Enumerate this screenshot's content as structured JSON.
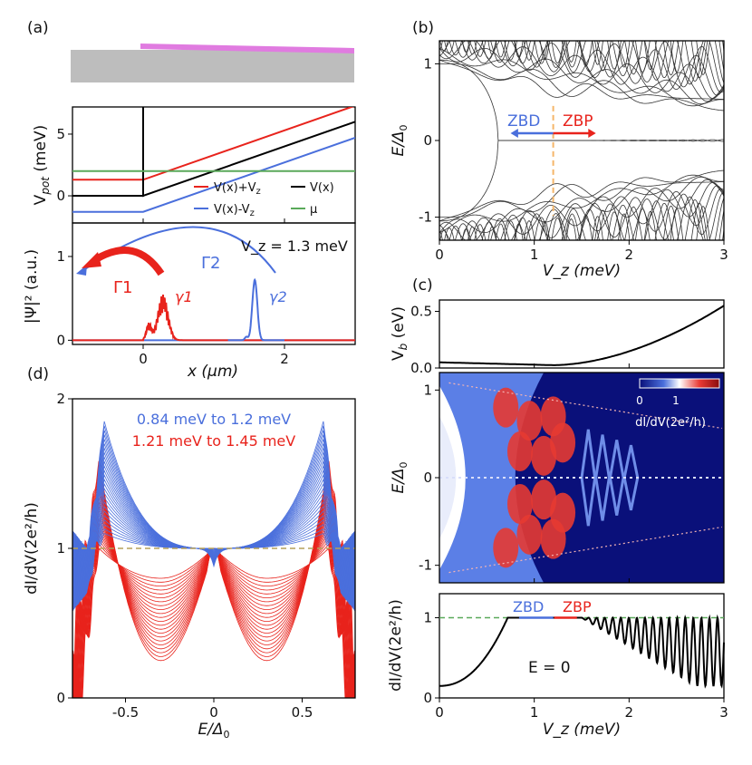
{
  "colors": {
    "red": "#e8231c",
    "blue": "#4a6fdc",
    "black": "#000000",
    "green": "#5aa95a",
    "pink": "#e07be0",
    "gray": "#bdbdbd",
    "orange": "#f5b66a",
    "darkblue": "#0a107a"
  },
  "panel_labels": {
    "a": "(a)",
    "b": "(b)",
    "c": "(c)",
    "d": "(d)"
  },
  "chart_data": [
    {
      "id": "a_device",
      "type": "diagram",
      "description_items": [
        "substrate",
        "superconductor strip"
      ]
    },
    {
      "id": "a_potential",
      "type": "line",
      "ylabel": "V_pot (meV)",
      "xlim": [
        -1,
        3
      ],
      "ylim": [
        -2.2,
        7.2
      ],
      "yticks": [
        "0",
        "5"
      ],
      "series": [
        {
          "name": "V(x)+V_z",
          "color": "#e8231c",
          "x": [
            -1,
            0,
            0,
            3
          ],
          "y": [
            1.3,
            1.3,
            1.3,
            7.3
          ]
        },
        {
          "name": "V(x)-V_z",
          "color": "#4a6fdc",
          "x": [
            -1,
            0,
            0,
            3
          ],
          "y": [
            -1.3,
            -1.3,
            -1.3,
            4.7
          ]
        },
        {
          "name": "V(x)",
          "color": "#000000",
          "x": [
            -1,
            0,
            0,
            0,
            3
          ],
          "y": [
            0,
            0,
            7.2,
            0,
            6
          ]
        },
        {
          "name": "μ",
          "color": "#5aa95a",
          "x": [
            -1,
            3
          ],
          "y": [
            2,
            2
          ]
        }
      ],
      "legend": [
        "V(x)+V_z",
        "V(x)",
        "V(x)-V_z",
        "μ"
      ]
    },
    {
      "id": "a_wavefunction",
      "type": "line",
      "xlabel": "x (μm)",
      "ylabel": "|Ψ|² (a.u.)",
      "xlim": [
        -1,
        3
      ],
      "ylim": [
        -0.05,
        1.4
      ],
      "xticks": [
        "0",
        "2"
      ],
      "yticks": [
        "0",
        "1"
      ],
      "annotation": "V_z = 1.3 meV",
      "labels": {
        "Gamma1": "Γ1",
        "Gamma2": "Γ2",
        "gamma1": "γ1",
        "gamma2": "γ2"
      },
      "series": [
        {
          "name": "γ1",
          "color": "#e8231c",
          "x": [
            0,
            0.05,
            0.1,
            0.12,
            0.15,
            0.18,
            0.2,
            0.22,
            0.25,
            0.28,
            0.3,
            0.33,
            0.36,
            0.4,
            0.45,
            0.6,
            3
          ],
          "y": [
            0,
            0.12,
            0.22,
            0.1,
            0.3,
            0.15,
            0.35,
            0.28,
            0.45,
            0.6,
            0.35,
            0.25,
            0.1,
            0.05,
            0.02,
            0,
            0
          ]
        },
        {
          "name": "γ2",
          "color": "#4a6fdc",
          "x": [
            -1,
            1.3,
            1.45,
            1.52,
            1.58,
            1.64,
            1.7,
            1.8,
            3
          ],
          "y": [
            0,
            0,
            0.02,
            0.25,
            0.72,
            0.3,
            0.03,
            0,
            0
          ]
        }
      ]
    },
    {
      "id": "b_spectrum",
      "type": "line",
      "xlabel": "V_z (meV)",
      "ylabel": "E/Δ0",
      "xlim": [
        0,
        3
      ],
      "ylim": [
        -1.3,
        1.3
      ],
      "xticks": [
        "0",
        "1",
        "2",
        "3"
      ],
      "yticks": [
        "-1",
        "0",
        "1"
      ],
      "annotations": {
        "zbd": "ZBD",
        "zbp": "ZBP"
      },
      "vline_x": 1.2
    },
    {
      "id": "c_barrier",
      "type": "line",
      "ylabel": "V_b (eV)",
      "xlim": [
        0,
        3
      ],
      "ylim": [
        0,
        0.6
      ],
      "yticks": [
        "0.0",
        "0.5"
      ],
      "x": [
        0,
        0.4,
        0.8,
        1.2,
        1.5,
        1.8,
        2.1,
        2.4,
        2.7,
        3.0
      ],
      "y": [
        0.05,
        0.035,
        0.025,
        0.025,
        0.06,
        0.13,
        0.22,
        0.31,
        0.42,
        0.55
      ]
    },
    {
      "id": "c_heatmap",
      "type": "heatmap",
      "ylabel": "E/Δ0",
      "xlim": [
        0,
        3
      ],
      "ylim": [
        -1.2,
        1.2
      ],
      "yticks": [
        "-1",
        "0",
        "1"
      ],
      "colorbar": {
        "label": "dI/dV(2e²/h)",
        "ticks": [
          "0",
          "1"
        ],
        "range": [
          0,
          1.3
        ]
      }
    },
    {
      "id": "c_zerobias",
      "type": "line",
      "xlabel": "V_z (meV)",
      "ylabel": "dI/dV(2e²/h)",
      "xlim": [
        0,
        3
      ],
      "ylim": [
        0,
        1.3
      ],
      "xticks": [
        "0",
        "1",
        "2",
        "3"
      ],
      "yticks": [
        "0",
        "1"
      ],
      "annotation": "E = 0",
      "labels": {
        "zbd": "ZBD",
        "zbp": "ZBP"
      },
      "reference_line": 1.0,
      "x": [
        0,
        0.2,
        0.4,
        0.6,
        0.7,
        0.8,
        1.5
      ],
      "y": [
        0.15,
        0.25,
        0.4,
        0.65,
        0.95,
        1.0,
        1.0
      ]
    },
    {
      "id": "d_conductance",
      "type": "line",
      "xlabel": "E/Δ0",
      "ylabel": "dI/dV(2e²/h)",
      "xlim": [
        -0.8,
        0.8
      ],
      "ylim": [
        0,
        2
      ],
      "xticks": [
        "-0.5",
        "0",
        "0.5"
      ],
      "yticks": [
        "0",
        "1",
        "2"
      ],
      "series": [
        {
          "name": "0.84 meV to 1.2 meV",
          "color": "#4a6fdc"
        },
        {
          "name": "1.21 meV to 1.45 meV",
          "color": "#e8231c"
        }
      ]
    }
  ]
}
